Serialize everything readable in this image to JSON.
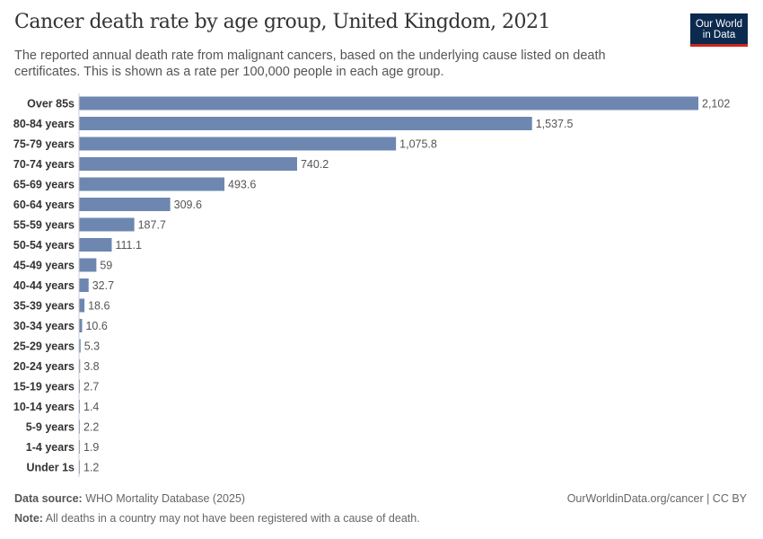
{
  "header": {
    "title": "Cancer death rate by age group, United Kingdom, 2021",
    "subtitle": "The reported annual death rate from malignant cancers, based on the underlying cause listed on death certificates. This is shown as a rate per 100,000 people in each age group.",
    "logo": "Our World in Data"
  },
  "chart_data": {
    "type": "bar",
    "orientation": "horizontal",
    "title": "Cancer death rate by age group, United Kingdom, 2021",
    "categories": [
      "Over 85s",
      "80-84 years",
      "75-79 years",
      "70-74 years",
      "65-69 years",
      "60-64 years",
      "55-59 years",
      "50-54 years",
      "45-49 years",
      "40-44 years",
      "35-39 years",
      "30-34 years",
      "25-29 years",
      "20-24 years",
      "15-19 years",
      "10-14 years",
      "5-9 years",
      "1-4 years",
      "Under 1s"
    ],
    "values": [
      2102,
      1537.5,
      1075.8,
      740.2,
      493.6,
      309.6,
      187.7,
      111.1,
      59,
      32.7,
      18.6,
      10.6,
      5.3,
      3.8,
      2.7,
      1.4,
      2.2,
      1.9,
      1.2
    ],
    "value_labels": [
      "2,102",
      "1,537.5",
      "1,075.8",
      "740.2",
      "493.6",
      "309.6",
      "187.7",
      "111.1",
      "59",
      "32.7",
      "18.6",
      "10.6",
      "5.3",
      "3.8",
      "2.7",
      "1.4",
      "2.2",
      "1.9",
      "1.2"
    ],
    "bar_color": "#6d87b0",
    "xlim": [
      0,
      2102
    ]
  },
  "footer": {
    "source_label": "Data source:",
    "source": "WHO Mortality Database (2025)",
    "url": "OurWorldinData.org/cancer | CC BY",
    "note_label": "Note:",
    "note": "All deaths in a country may not have been registered with a cause of death."
  }
}
